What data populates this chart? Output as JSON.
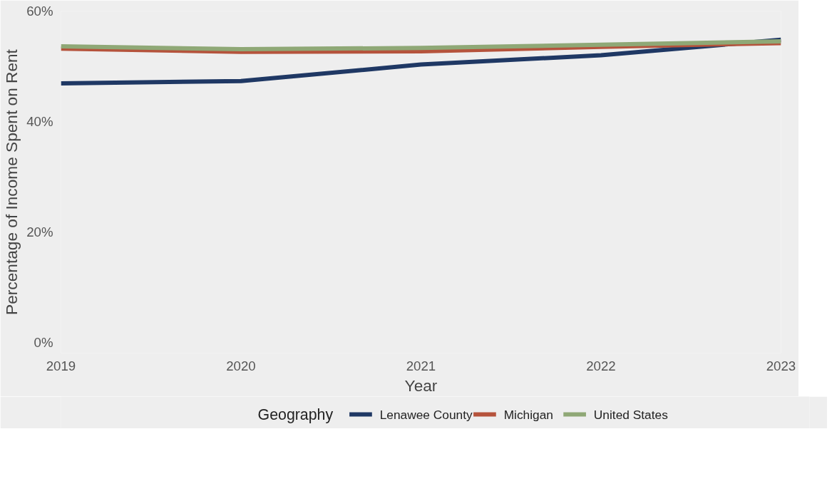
{
  "chart_data": {
    "type": "line",
    "xlabel": "Year",
    "ylabel": "Percentage of Income Spent on Rent",
    "legend_title": "Geography",
    "legend": "bottom",
    "grid": false,
    "x": [
      2019,
      2020,
      2021,
      2022,
      2023
    ],
    "xlim": [
      2019,
      2023
    ],
    "xticks": [
      2019,
      2020,
      2021,
      2022,
      2023
    ],
    "ylim": [
      -2,
      60
    ],
    "yticks": [
      {
        "value": 0,
        "label": "0%"
      },
      {
        "value": 20,
        "label": "20%"
      },
      {
        "value": 40,
        "label": "40%"
      },
      {
        "value": 60,
        "label": "60%"
      }
    ],
    "series": [
      {
        "name": "Lenawee County",
        "color": "#1f3864",
        "values": [
          46.9,
          47.3,
          50.3,
          52.0,
          54.8
        ]
      },
      {
        "name": "Michigan",
        "color": "#b5533c",
        "values": [
          53.2,
          52.6,
          52.7,
          53.5,
          54.2
        ]
      },
      {
        "name": "United States",
        "color": "#8fa876",
        "values": [
          53.6,
          53.1,
          53.3,
          53.9,
          54.5
        ]
      }
    ]
  }
}
